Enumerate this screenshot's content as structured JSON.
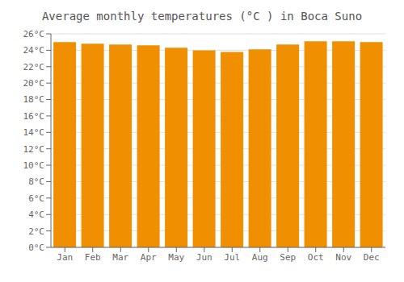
{
  "chart_data": {
    "type": "bar",
    "title": "Average monthly temperatures (°C ) in Boca Suno",
    "categories": [
      "Jan",
      "Feb",
      "Mar",
      "Apr",
      "May",
      "Jun",
      "Jul",
      "Aug",
      "Sep",
      "Oct",
      "Nov",
      "Dec"
    ],
    "values": [
      25.0,
      24.8,
      24.7,
      24.6,
      24.3,
      24.0,
      23.8,
      24.1,
      24.7,
      25.1,
      25.1,
      25.0
    ],
    "color": "#F09000",
    "ylim": [
      0,
      26
    ],
    "yticks": [
      {
        "value": 0,
        "label": "0°C"
      },
      {
        "value": 2,
        "label": "2°C"
      },
      {
        "value": 4,
        "label": "4°C"
      },
      {
        "value": 6,
        "label": "6°C"
      },
      {
        "value": 8,
        "label": "8°C"
      },
      {
        "value": 10,
        "label": "10°C"
      },
      {
        "value": 12,
        "label": "12°C"
      },
      {
        "value": 14,
        "label": "14°C"
      },
      {
        "value": 16,
        "label": "16°C"
      },
      {
        "value": 18,
        "label": "18°C"
      },
      {
        "value": 20,
        "label": "20°C"
      },
      {
        "value": 22,
        "label": "22°C"
      },
      {
        "value": 24,
        "label": "24°C"
      },
      {
        "value": 26,
        "label": "26°C"
      }
    ],
    "grid": true
  }
}
